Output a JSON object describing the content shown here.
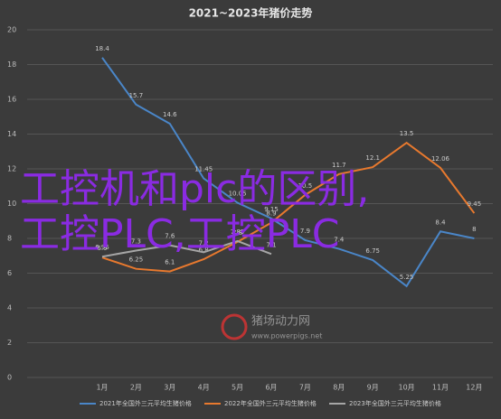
{
  "chart_data": {
    "type": "line",
    "title": "2021~2023年猪价走势",
    "categories": [
      "1月",
      "2月",
      "3月",
      "4月",
      "5月",
      "6月",
      "7月",
      "8月",
      "9月",
      "10月",
      "11月",
      "12月"
    ],
    "series": [
      {
        "name": "2021年全国外三元平均生猪价格",
        "color": "#4a86c8",
        "values": [
          18.4,
          15.7,
          14.6,
          11.45,
          10.05,
          9.15,
          7.9,
          7.4,
          6.75,
          5.25,
          8.4,
          8
        ]
      },
      {
        "name": "2022年全国外三元平均生猪价格",
        "color": "#e8792e",
        "values": [
          6.9,
          6.25,
          6.1,
          6.8,
          7.8,
          8.9,
          10.5,
          11.7,
          12.1,
          13.5,
          12.06,
          9.45
        ]
      },
      {
        "name": "2023年全国外三元平均生猪价格",
        "color": "#a6a6a6",
        "values": [
          6.95,
          7.3,
          7.6,
          7.2,
          7.85,
          7.1,
          null,
          null,
          null,
          null,
          null,
          null
        ]
      }
    ],
    "ylim": [
      0,
      20
    ],
    "yticks": [
      0,
      2,
      4,
      6,
      8,
      10,
      12,
      14,
      16,
      18,
      20
    ],
    "grid": true,
    "annotations": [
      "工控机和plc的区别,",
      "工控PLC,工控PLC",
      "猪场动力网",
      "www.powerpigs.net"
    ]
  }
}
